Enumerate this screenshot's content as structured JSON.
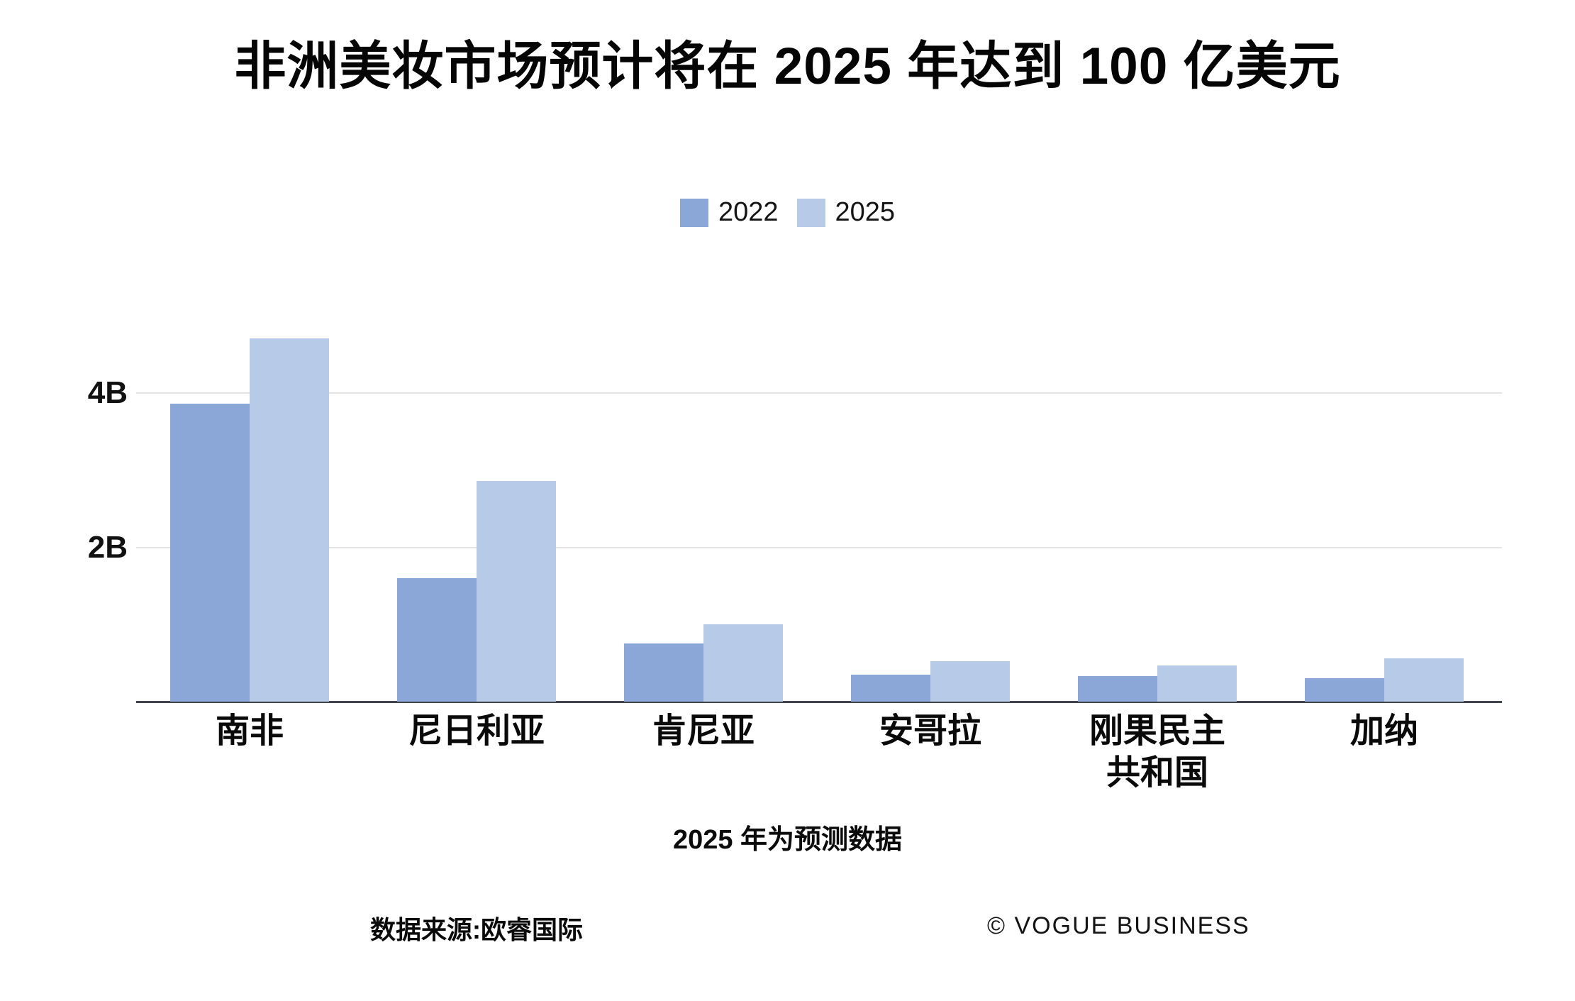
{
  "title": "非洲美妆市场预计将在 2025 年达到 100 亿美元",
  "legend": {
    "items": [
      {
        "label": "2022",
        "color": "#8AA7D7"
      },
      {
        "label": "2025",
        "color": "#B7CBE9"
      }
    ]
  },
  "caption": "2025 年为预测数据",
  "footer": {
    "source": "数据来源:欧睿国际",
    "credit": "© VOGUE BUSINESS"
  },
  "colors": {
    "bar_2022": "#8AA7D7",
    "bar_2025": "#B7CBE9",
    "gridline": "#e4e4e4",
    "axis_line": "#42464c",
    "background": "#ffffff",
    "text": "#0a0a0a"
  },
  "chart_data": {
    "type": "bar",
    "title": "非洲美妆市场预计将在 2025 年达到 100 亿美元",
    "categories": [
      "南非",
      "尼日利亚",
      "肯尼亚",
      "安哥拉",
      "刚果民主\n共和国",
      "加纳"
    ],
    "series": [
      {
        "name": "2022",
        "color": "#8AA7D7",
        "values": [
          3.85,
          1.6,
          0.75,
          0.35,
          0.33,
          0.3
        ]
      },
      {
        "name": "2025",
        "color": "#B7CBE9",
        "values": [
          4.7,
          2.85,
          1.0,
          0.52,
          0.47,
          0.56
        ]
      }
    ],
    "unit": "B (十亿美元)",
    "xlabel": "",
    "ylabel": "",
    "ylim": [
      0,
      5.22
    ],
    "y_ticks": [
      2,
      4
    ],
    "y_tick_labels": [
      "2B",
      "4B"
    ],
    "grid": "horizontal",
    "legend_position": "top-center",
    "note": "2025 年为预测数据"
  }
}
